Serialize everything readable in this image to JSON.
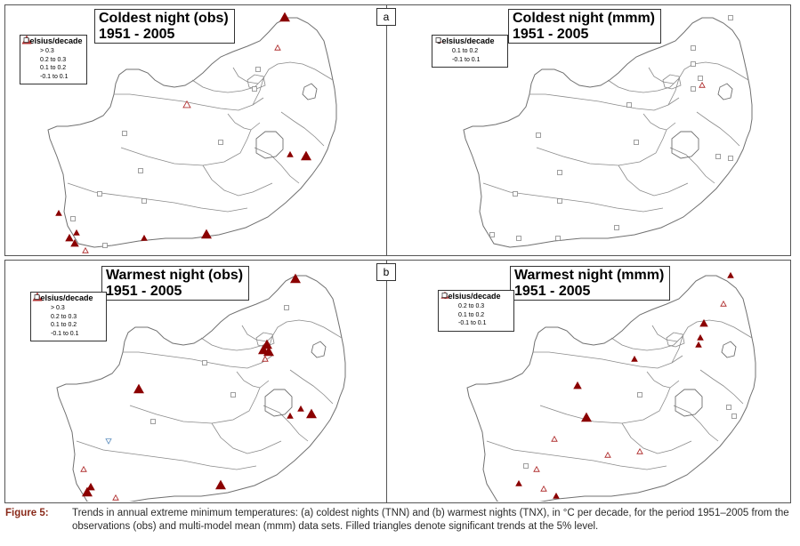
{
  "colors": {
    "significant": "#8b0000",
    "nonsignificant": "#b03030",
    "square": "#888888",
    "negative": "#6090c0",
    "outline": "#a0a0a0"
  },
  "panels": [
    {
      "id": "coldest-obs",
      "title_line1": "Coldest night (obs)",
      "title_line2": "1951 - 2005",
      "legend": {
        "title": "Celsius/decade",
        "items": [
          {
            "symbol": "tri-large",
            "label": "> 0.3"
          },
          {
            "symbol": "tri-medium",
            "label": "0.2 to 0.3"
          },
          {
            "symbol": "tri-small",
            "label": "0.1 to 0.2"
          },
          {
            "symbol": "square",
            "label": "-0.1 to 0.1"
          }
        ]
      }
    },
    {
      "id": "coldest-mmm",
      "title_line1": "Coldest night (mmm)",
      "title_line2": "1951 - 2005",
      "legend": {
        "title": "Celsius/decade",
        "items": [
          {
            "symbol": "tri-small",
            "label": "0.1 to 0.2"
          },
          {
            "symbol": "square",
            "label": "-0.1 to 0.1"
          }
        ]
      }
    },
    {
      "id": "warmest-obs",
      "title_line1": "Warmest night (obs)",
      "title_line2": "1951 - 2005",
      "legend": {
        "title": "Celsius/decade",
        "items": [
          {
            "symbol": "tri-large",
            "label": "> 0.3"
          },
          {
            "symbol": "tri-medium",
            "label": "0.2 to 0.3"
          },
          {
            "symbol": "tri-small",
            "label": "0.1 to 0.2"
          },
          {
            "symbol": "square",
            "label": "-0.1 to 0.1"
          }
        ]
      }
    },
    {
      "id": "warmest-mmm",
      "title_line1": "Warmest night (mmm)",
      "title_line2": "1951 - 2005",
      "legend": {
        "title": "Celsius/decade",
        "items": [
          {
            "symbol": "tri-medium",
            "label": "0.2 to 0.3"
          },
          {
            "symbol": "tri-small",
            "label": "0.1 to 0.2"
          },
          {
            "symbol": "square",
            "label": "-0.1 to 0.1"
          }
        ]
      }
    }
  ],
  "tags": {
    "a": "a",
    "b": "b"
  },
  "caption": {
    "label": "Figure 5:",
    "text": "Trends in annual extreme minimum temperatures: (a) coldest nights (TNN) and (b) warmest nights (TNX), in °C per decade, for the period 1951–2005 from the observations (obs) and multi-model mean (mmm) data sets. Filled triangles denote significant trends at the 5% level."
  }
}
